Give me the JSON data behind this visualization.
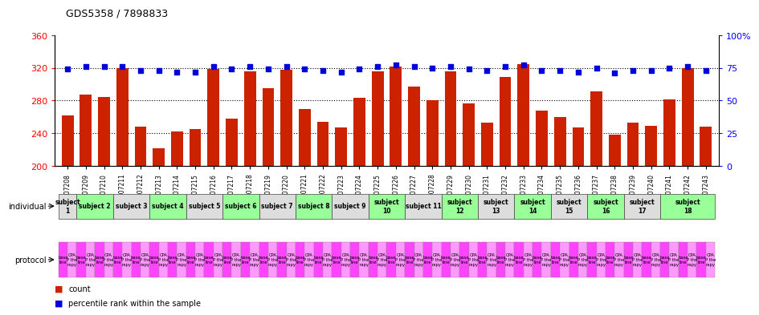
{
  "title": "GDS5358 / 7898833",
  "bar_color": "#cc2200",
  "dot_color": "#0000dd",
  "ylim_left": [
    200,
    360
  ],
  "ylim_right": [
    0,
    100
  ],
  "yticks_left": [
    200,
    240,
    280,
    320,
    360
  ],
  "yticks_right": [
    0,
    25,
    50,
    75,
    100
  ],
  "yticklabels_right": [
    "0",
    "25",
    "50",
    "75",
    "100%"
  ],
  "gsm_labels": [
    "GSM1207208",
    "GSM1207209",
    "GSM1207210",
    "GSM1207211",
    "GSM1207212",
    "GSM1207213",
    "GSM1207214",
    "GSM1207215",
    "GSM1207216",
    "GSM1207217",
    "GSM1207218",
    "GSM1207219",
    "GSM1207220",
    "GSM1207221",
    "GSM1207222",
    "GSM1207223",
    "GSM1207224",
    "GSM1207225",
    "GSM1207226",
    "GSM1207227",
    "GSM1207228",
    "GSM1207229",
    "GSM1207230",
    "GSM1207231",
    "GSM1207232",
    "GSM1207233",
    "GSM1207234",
    "GSM1207235",
    "GSM1207236",
    "GSM1207237",
    "GSM1207238",
    "GSM1207239",
    "GSM1207240",
    "GSM1207241",
    "GSM1207242",
    "GSM1207243"
  ],
  "bar_values": [
    262,
    287,
    284,
    320,
    248,
    222,
    242,
    245,
    319,
    258,
    316,
    295,
    318,
    270,
    254,
    247,
    283,
    316,
    322,
    297,
    280,
    316,
    277,
    253,
    309,
    325,
    268,
    260,
    247,
    291,
    238,
    253,
    249,
    281,
    320,
    248
  ],
  "dot_values_pct": [
    74,
    76,
    76,
    76,
    73,
    73,
    72,
    72,
    76,
    74,
    76,
    74,
    76,
    74,
    73,
    72,
    74,
    76,
    77,
    76,
    75,
    76,
    74,
    73,
    76,
    77,
    73,
    73,
    72,
    75,
    71,
    73,
    73,
    75,
    76,
    73
  ],
  "subjects": [
    {
      "label": "subject\n1",
      "start": 0,
      "end": 1,
      "color": "#dddddd"
    },
    {
      "label": "subject 2",
      "start": 1,
      "end": 3,
      "color": "#99ff99"
    },
    {
      "label": "subject 3",
      "start": 3,
      "end": 5,
      "color": "#dddddd"
    },
    {
      "label": "subject 4",
      "start": 5,
      "end": 7,
      "color": "#99ff99"
    },
    {
      "label": "subject 5",
      "start": 7,
      "end": 9,
      "color": "#dddddd"
    },
    {
      "label": "subject 6",
      "start": 9,
      "end": 11,
      "color": "#99ff99"
    },
    {
      "label": "subject 7",
      "start": 11,
      "end": 13,
      "color": "#dddddd"
    },
    {
      "label": "subject 8",
      "start": 13,
      "end": 15,
      "color": "#99ff99"
    },
    {
      "label": "subject 9",
      "start": 15,
      "end": 17,
      "color": "#dddddd"
    },
    {
      "label": "subject\n10",
      "start": 17,
      "end": 19,
      "color": "#99ff99"
    },
    {
      "label": "subject 11",
      "start": 19,
      "end": 21,
      "color": "#dddddd"
    },
    {
      "label": "subject\n12",
      "start": 21,
      "end": 23,
      "color": "#99ff99"
    },
    {
      "label": "subject\n13",
      "start": 23,
      "end": 25,
      "color": "#dddddd"
    },
    {
      "label": "subject\n14",
      "start": 25,
      "end": 27,
      "color": "#99ff99"
    },
    {
      "label": "subject\n15",
      "start": 27,
      "end": 29,
      "color": "#dddddd"
    },
    {
      "label": "subject\n16",
      "start": 29,
      "end": 31,
      "color": "#99ff99"
    },
    {
      "label": "subject\n17",
      "start": 31,
      "end": 33,
      "color": "#dddddd"
    },
    {
      "label": "subject\n18",
      "start": 33,
      "end": 36,
      "color": "#99ff99"
    }
  ],
  "baseline_color": "#ff44ff",
  "cpa_color": "#ff99ff",
  "individual_label": "individual",
  "protocol_label": "protocol",
  "legend_count": "count",
  "legend_percentile": "percentile rank within the sample",
  "bg_color": "#ffffff",
  "grid_color": "#000000",
  "hgrid_vals": [
    240,
    280,
    320
  ]
}
